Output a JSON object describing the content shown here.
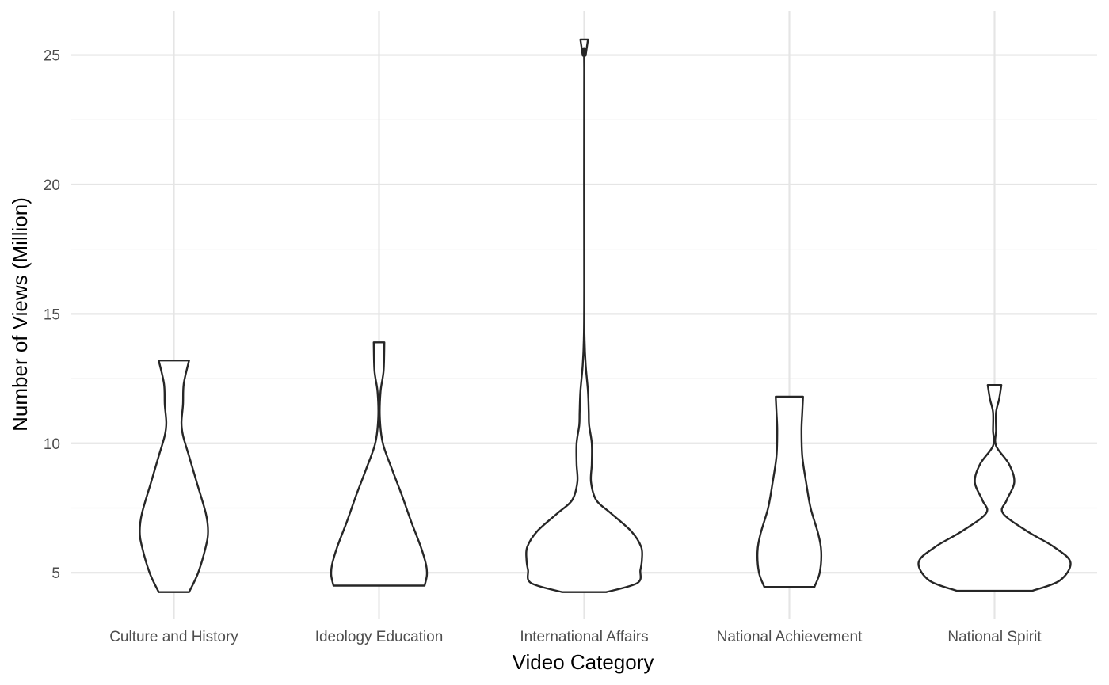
{
  "chart_data": {
    "type": "violin",
    "xlabel": "Video Category",
    "ylabel": "Number of Views (Million)",
    "categories": [
      "Culture and History",
      "Ideology Education",
      "International Affairs",
      "National Achievement",
      "National Spirit"
    ],
    "y_ticks": [
      5,
      10,
      15,
      20,
      25
    ],
    "ylim": [
      3.2,
      26.7
    ],
    "grid": true,
    "legend": "none",
    "series": [
      {
        "category": "Culture and History",
        "min": 4.25,
        "max": 13.2,
        "density": [
          [
            4.25,
            0.2
          ],
          [
            5,
            0.32
          ],
          [
            6,
            0.42
          ],
          [
            6.6,
            0.45
          ],
          [
            7.3,
            0.42
          ],
          [
            8.5,
            0.3
          ],
          [
            9.5,
            0.2
          ],
          [
            10.3,
            0.12
          ],
          [
            10.8,
            0.1
          ],
          [
            11.5,
            0.12
          ],
          [
            12.3,
            0.13
          ],
          [
            13.2,
            0.2
          ]
        ]
      },
      {
        "category": "Ideology Education",
        "min": 4.5,
        "max": 13.9,
        "density": [
          [
            4.5,
            0.6
          ],
          [
            4.9,
            0.63
          ],
          [
            5.3,
            0.62
          ],
          [
            6,
            0.55
          ],
          [
            7,
            0.42
          ],
          [
            8,
            0.3
          ],
          [
            9,
            0.17
          ],
          [
            10,
            0.05
          ],
          [
            11,
            0.01
          ],
          [
            12,
            0.02
          ],
          [
            12.8,
            0.06
          ],
          [
            13.9,
            0.07
          ]
        ]
      },
      {
        "category": "International Affairs",
        "min": 4.25,
        "max": 25.6,
        "density": [
          [
            4.25,
            0.29
          ],
          [
            4.6,
            0.7
          ],
          [
            5.1,
            0.74
          ],
          [
            5.5,
            0.76
          ],
          [
            6,
            0.75
          ],
          [
            6.6,
            0.62
          ],
          [
            7.3,
            0.35
          ],
          [
            7.8,
            0.16
          ],
          [
            8.5,
            0.09
          ],
          [
            9.2,
            0.1
          ],
          [
            10,
            0.1
          ],
          [
            10.7,
            0.065
          ],
          [
            11.2,
            0.06
          ],
          [
            12,
            0.05
          ],
          [
            13,
            0.02
          ],
          [
            14,
            0.005
          ],
          [
            16,
            0.0
          ],
          [
            24.5,
            0.0
          ],
          [
            25,
            0.02
          ],
          [
            25.6,
            0.05
          ]
        ]
      },
      {
        "category": "National Achievement",
        "min": 4.45,
        "max": 11.8,
        "density": [
          [
            4.45,
            0.33
          ],
          [
            5,
            0.4
          ],
          [
            5.8,
            0.42
          ],
          [
            6.5,
            0.38
          ],
          [
            7.5,
            0.28
          ],
          [
            8.5,
            0.22
          ],
          [
            9.5,
            0.17
          ],
          [
            10.5,
            0.16
          ],
          [
            11.2,
            0.17
          ],
          [
            11.8,
            0.18
          ]
        ]
      },
      {
        "category": "National Spirit",
        "min": 4.3,
        "max": 12.25,
        "density": [
          [
            4.3,
            0.5
          ],
          [
            4.7,
            0.86
          ],
          [
            5.4,
            1.0
          ],
          [
            6,
            0.78
          ],
          [
            6.6,
            0.43
          ],
          [
            7.3,
            0.11
          ],
          [
            7.8,
            0.16
          ],
          [
            8.5,
            0.26
          ],
          [
            9.2,
            0.19
          ],
          [
            9.9,
            0.02
          ],
          [
            10.5,
            0.02
          ],
          [
            11.2,
            0.02
          ],
          [
            11.7,
            0.06
          ],
          [
            12.25,
            0.09
          ]
        ]
      }
    ]
  }
}
